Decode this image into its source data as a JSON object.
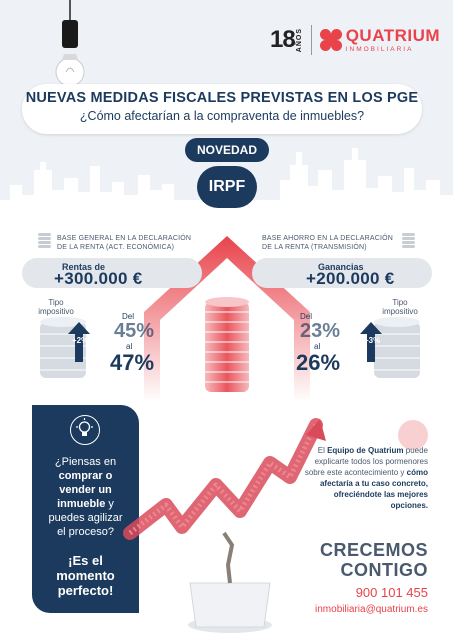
{
  "brand": {
    "anniversary_number": "18",
    "anniversary_word": "AÑOS",
    "name": "QUATRIUM",
    "subtitle": "INMOBILIARIA",
    "accent_color": "#e8434b",
    "navy_color": "#1c3a5e"
  },
  "header": {
    "title": "NUEVAS MEDIDAS FISCALES PREVISTAS EN LOS PGE",
    "subtitle": "¿Cómo afectarían a la compraventa de inmuebles?",
    "tag": "NOVEDAD",
    "topic": "IRPF"
  },
  "left_block": {
    "label_line1": "BASE GENERAL EN LA DECLARACIÓN",
    "label_line2": "DE LA RENTA (ACT. ECONÓMICA)",
    "pill_small": "Rentas de",
    "pill_big": "+300.000 €",
    "tipo_line1": "Tipo",
    "tipo_line2": "impositivo",
    "arrow_label": "+2%",
    "rate_from_label": "Del",
    "rate_from": "45%",
    "rate_to_label": "al",
    "rate_to": "47%"
  },
  "right_block": {
    "label_line1": "BASE AHORRO EN LA DECLARACIÓN",
    "label_line2": "DE LA RENTA (TRANSMISIÓN)",
    "pill_small": "Ganancias",
    "pill_big": "+200.000 €",
    "tipo_line1": "Tipo",
    "tipo_line2": "impositivo",
    "arrow_label": "+3%",
    "rate_from_label": "Del",
    "rate_from": "23%",
    "rate_to_label": "al",
    "rate_to": "26%"
  },
  "card": {
    "icon": "lightbulb-icon",
    "text_1": "¿Piensas en",
    "text_2": "comprar o",
    "text_3": "vender un",
    "text_4": "inmueble",
    "text_5": " y",
    "text_6": "puedes agilizar",
    "text_7": "el proceso?",
    "cta_1": "¡Es el",
    "cta_2": "momento",
    "cta_3": "perfecto!"
  },
  "info": {
    "p1": "El ",
    "p1_bold": "Equipo de Quatrium",
    "p2": " puede explicarte todos los pormenores sobre este acontecimiento y ",
    "p2_bold": "cómo afectaría a tu caso concreto, ofreciéndote las mejores opciones.",
    "slogan_1": "CRECEMOS",
    "slogan_2": "CONTIGO",
    "phone": "900 101 455",
    "email": "inmobiliaria@quatrium.es"
  }
}
